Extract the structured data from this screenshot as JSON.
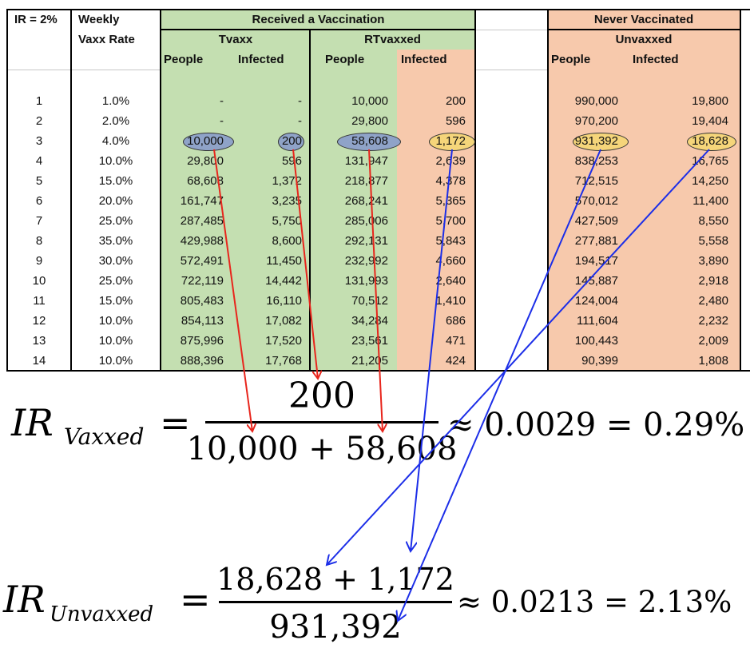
{
  "table": {
    "corner_label": "IR = 2%",
    "weekly_label_1": "Weekly",
    "weekly_label_2": "Vaxx Rate",
    "received_header": "Received a Vaccination",
    "tvaxx_header": "Tvaxx",
    "rtvaxxed_header": "RTvaxxed",
    "never_header": "Never Vaccinated",
    "unvaxxed_header": "Unvaxxed",
    "people_label": "People",
    "infected_label": "Infected",
    "rows": [
      [
        "1",
        "1.0%",
        "-",
        "-",
        "10,000",
        "200",
        "990,000",
        "19,800"
      ],
      [
        "2",
        "2.0%",
        "-",
        "-",
        "29,800",
        "596",
        "970,200",
        "19,404"
      ],
      [
        "3",
        "4.0%",
        "10,000",
        "200",
        "58,608",
        "1,172",
        "931,392",
        "18,628"
      ],
      [
        "4",
        "10.0%",
        "29,800",
        "596",
        "131,947",
        "2,639",
        "838,253",
        "16,765"
      ],
      [
        "5",
        "15.0%",
        "68,608",
        "1,372",
        "218,877",
        "4,378",
        "712,515",
        "14,250"
      ],
      [
        "6",
        "20.0%",
        "161,747",
        "3,235",
        "268,241",
        "5,365",
        "570,012",
        "11,400"
      ],
      [
        "7",
        "25.0%",
        "287,485",
        "5,750",
        "285,006",
        "5,700",
        "427,509",
        "8,550"
      ],
      [
        "8",
        "35.0%",
        "429,988",
        "8,600",
        "292,131",
        "5,843",
        "277,881",
        "5,558"
      ],
      [
        "9",
        "30.0%",
        "572,491",
        "11,450",
        "232,992",
        "4,660",
        "194,517",
        "3,890"
      ],
      [
        "10",
        "25.0%",
        "722,119",
        "14,442",
        "131,993",
        "2,640",
        "145,887",
        "2,918"
      ],
      [
        "11",
        "15.0%",
        "805,483",
        "16,110",
        "70,512",
        "1,410",
        "124,004",
        "2,480"
      ],
      [
        "12",
        "10.0%",
        "854,113",
        "17,082",
        "34,284",
        "686",
        "111,604",
        "2,232"
      ],
      [
        "13",
        "10.0%",
        "875,996",
        "17,520",
        "23,561",
        "471",
        "100,443",
        "2,009"
      ],
      [
        "14",
        "10.0%",
        "888,396",
        "17,768",
        "21,205",
        "424",
        "90,399",
        "1,808"
      ]
    ]
  },
  "formula_vaxxed": {
    "lhs_main": "IR",
    "lhs_sub": "Vaxxed",
    "numerator": "200",
    "denominator": "10,000 + 58,608",
    "result": "≈ 0.0029 = 0.29%"
  },
  "formula_unvaxxed": {
    "lhs_main": "IR",
    "lhs_sub": "Unvaxxed",
    "numerator": "18,628 + 1,172",
    "denominator": "931,392",
    "result": "≈ 0.0213 = 2.13%"
  },
  "colors": {
    "green": "#c4dfb1",
    "peach": "#f7c9ac",
    "oval_blue": "#8fa3c8",
    "oval_yellow": "#f5d57a",
    "arrow_red": "#e8251c",
    "arrow_blue": "#1c2ee8"
  }
}
